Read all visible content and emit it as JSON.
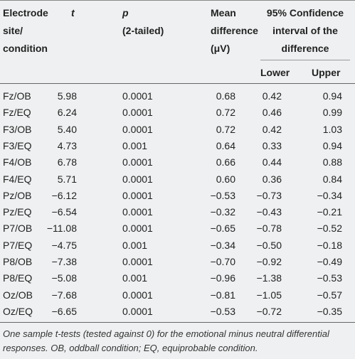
{
  "table": {
    "header": [
      [
        "Electrode",
        "site/",
        "condition"
      ],
      [
        "t"
      ],
      [
        "p",
        "(2-tailed)"
      ],
      [
        "Mean",
        "difference",
        "(μV)"
      ],
      [
        "95% Confidence",
        "interval of the",
        "difference"
      ]
    ],
    "subheader": [
      "Lower",
      "Upper"
    ],
    "rows": [
      [
        "Fz/OB",
        "5.98",
        "0.0001",
        "0.68",
        "0.42",
        "0.94"
      ],
      [
        "Fz/EQ",
        "6.24",
        "0.0001",
        "0.72",
        "0.46",
        "0.99"
      ],
      [
        "F3/OB",
        "5.40",
        "0.0001",
        "0.72",
        "0.42",
        "1.03"
      ],
      [
        "F3/EQ",
        "4.73",
        "0.001",
        "0.64",
        "0.33",
        "0.94"
      ],
      [
        "F4/OB",
        "6.78",
        "0.0001",
        "0.66",
        "0.44",
        "0.88"
      ],
      [
        "F4/EQ",
        "5.71",
        "0.0001",
        "0.60",
        "0.36",
        "0.84"
      ],
      [
        "Pz/OB",
        "−6.12",
        "0.0001",
        "−0.53",
        "−0.73",
        "−0.34"
      ],
      [
        "Pz/EQ",
        "−6.54",
        "0.0001",
        "−0.32",
        "−0.43",
        "−0.21"
      ],
      [
        "P7/OB",
        "−11.08",
        "0.0001",
        "−0.65",
        "−0.78",
        "−0.52"
      ],
      [
        "P7/EQ",
        "−4.75",
        "0.001",
        "−0.34",
        "−0.50",
        "−0.18"
      ],
      [
        "P8/OB",
        "−7.38",
        "0.0001",
        "−0.70",
        "−0.92",
        "−0.49"
      ],
      [
        "P8/EQ",
        "−5.08",
        "0.001",
        "−0.96",
        "−1.38",
        "−0.53"
      ],
      [
        "Oz/OB",
        "−7.68",
        "0.0001",
        "−0.81",
        "−1.05",
        "−0.57"
      ],
      [
        "Oz/EQ",
        "−6.65",
        "0.0001",
        "−0.53",
        "−0.72",
        "−0.35"
      ]
    ]
  },
  "caption": "One sample t-tests (tested against 0) for the emotional minus neutral differential responses. OB, oddball condition; EQ, equiprobable condition."
}
